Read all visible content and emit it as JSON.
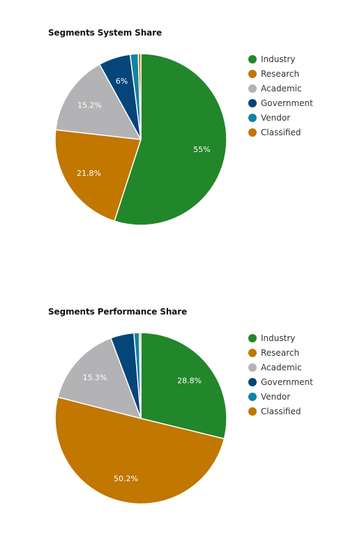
{
  "chart_data": [
    {
      "type": "pie",
      "title": "Segments System Share",
      "categories": [
        "Industry",
        "Research",
        "Academic",
        "Government",
        "Vendor",
        "Classified"
      ],
      "values": [
        55.0,
        21.8,
        15.2,
        6.0,
        1.5,
        0.5
      ],
      "slice_labels": [
        "55%",
        "21.8%",
        "15.2%",
        "6%",
        "",
        ""
      ],
      "colors": [
        "#22862a",
        "#c17700",
        "#b3b3b5",
        "#05457a",
        "#1183a3",
        "#c17700"
      ],
      "start_angle": "top",
      "direction": "clockwise",
      "legend_position": "right"
    },
    {
      "type": "pie",
      "title": "Segments Performance Share",
      "categories": [
        "Industry",
        "Research",
        "Academic",
        "Government",
        "Vendor",
        "Classified"
      ],
      "values": [
        28.8,
        50.2,
        15.3,
        4.4,
        1.0,
        0.3
      ],
      "slice_labels": [
        "28.8%",
        "50.2%",
        "15.3%",
        "",
        "",
        ""
      ],
      "colors": [
        "#22862a",
        "#c17700",
        "#b3b3b5",
        "#05457a",
        "#1183a3",
        "#c17700"
      ],
      "start_angle": "top",
      "direction": "clockwise",
      "legend_position": "right"
    }
  ]
}
